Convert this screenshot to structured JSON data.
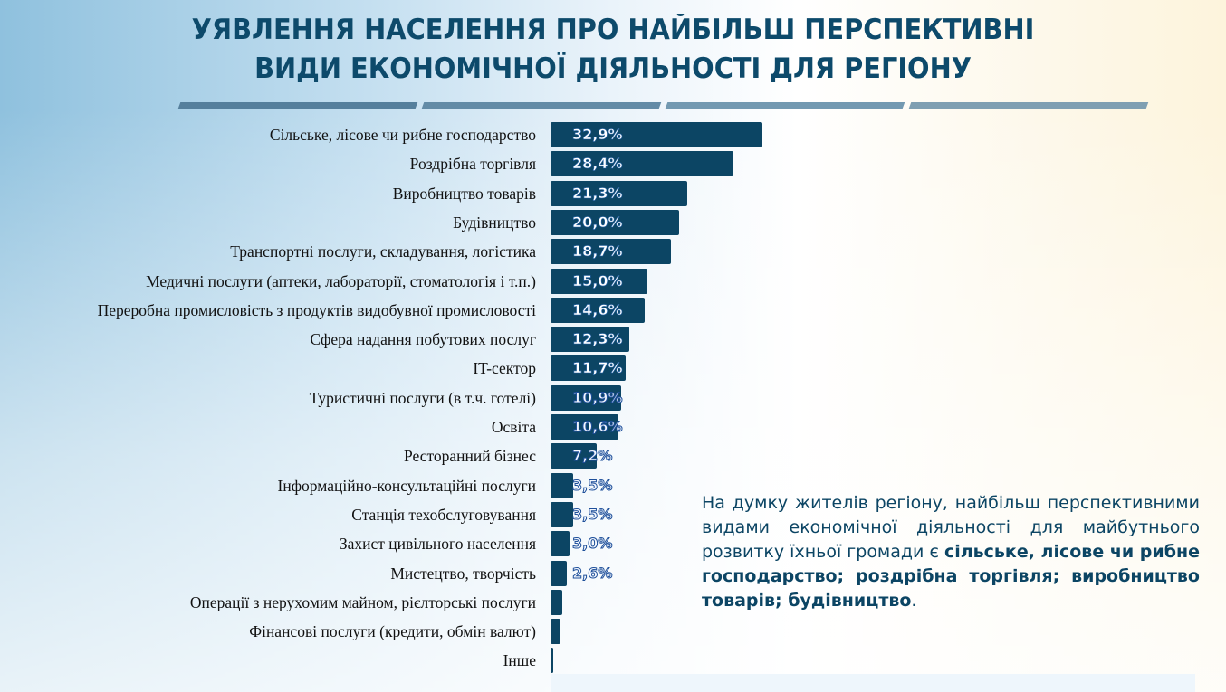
{
  "title_line1": "УЯВЛЕННЯ НАСЕЛЕННЯ ПРО НАЙБІЛЬШ ПЕРСПЕКТИВНІ",
  "title_line2": "ВИДИ ЕКОНОМІЧНОЇ ДІЯЛЬНОСТІ ДЛЯ РЕГІОНУ",
  "colors": {
    "bar": "#0c4564",
    "title": "#0d4a6b",
    "divider": [
      "#557f9c",
      "#638ba6",
      "#7399b1",
      "#7f9fb2"
    ]
  },
  "chart_data": {
    "type": "bar",
    "orientation": "horizontal",
    "unit": "%",
    "categories": [
      "Сільське, лісове чи рибне господарство",
      "Роздрібна торгівля",
      "Виробництво товарів",
      "Будівництво",
      "Транспортні послуги, складування, логістика",
      "Медичні послуги (аптеки, лабораторії, стоматологія і т.п.)",
      "Переробна промисловість з продуктів видобувної промисловості",
      "Сфера надання побутових послуг",
      "IT-сектор",
      "Туристичні послуги (в т.ч. готелі)",
      "Освіта",
      "Ресторанний бізнес",
      "Інформаційно-консультаційні послуги",
      "Станція техобслуговування",
      "Захист цивільного населення",
      "Мистецтво, творчість",
      "Операції з нерухомим майном, рієлторські послуги",
      "Фінансові послуги (кредити, обмін валют)",
      "Інше"
    ],
    "values": [
      32.9,
      28.4,
      21.3,
      20.0,
      18.7,
      15.0,
      14.6,
      12.3,
      11.7,
      10.9,
      10.6,
      7.2,
      3.5,
      3.5,
      3.0,
      2.6,
      1.8,
      1.5,
      0.4
    ],
    "data_labels": [
      "32,9%",
      "28,4%",
      "21,3%",
      "20,0%",
      "18,7%",
      "15,0%",
      "14,6%",
      "12,3%",
      "11,7%",
      "10,9%",
      "10,6%",
      "7,2%",
      "3,5%",
      "3,5%",
      "3,0%",
      "2,6%",
      "",
      "",
      ""
    ],
    "xlim": [
      0,
      33
    ],
    "grid": false,
    "legend": "none"
  },
  "note": {
    "plain": "На думку жителів регіону, найбільш перспективними видами економічної діяльності для майбутнього розвитку їхньої громади є ",
    "bold": "сільське, лісове чи рибне господарство; роздрібна торгівля; виробництво товарів; будівництво",
    "end": "."
  }
}
